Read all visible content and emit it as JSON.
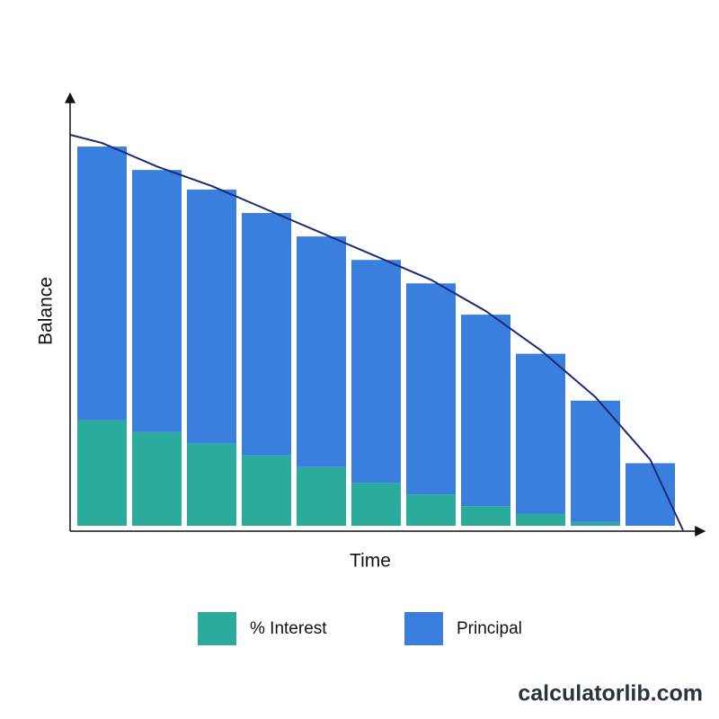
{
  "chart_data": {
    "type": "stacked-bar",
    "x_label": "Time",
    "y_label": "Balance",
    "categories": [
      null,
      null,
      null,
      null,
      null,
      null,
      null,
      null,
      null,
      null,
      null
    ],
    "series": [
      {
        "name": "% Interest",
        "color": "#2aab9b",
        "values": [
          27,
          24,
          21,
          18,
          15,
          11,
          8,
          5,
          3,
          1,
          0
        ]
      },
      {
        "name": "Principal",
        "color": "#3b7fde",
        "values": [
          70,
          67,
          65,
          62,
          59,
          57,
          54,
          49,
          41,
          31,
          16
        ]
      }
    ],
    "ylim": [
      0,
      100
    ],
    "line_color": "#1a2a7a",
    "watermark": "calculatorlib.com"
  }
}
